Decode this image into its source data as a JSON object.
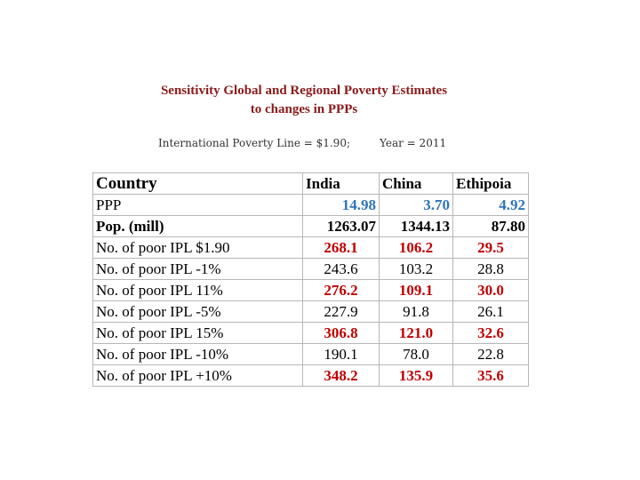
{
  "title": {
    "line1": "Sensitivity Global and Regional Poverty Estimates",
    "line2": "to changes in PPPs"
  },
  "subtitle": {
    "poverty_line": "International Poverty Line = $1.90;",
    "year": "Year = 2011"
  },
  "colors": {
    "title": "#8b1a1a",
    "ppp": "#2e75b6",
    "highlight": "#c00000"
  },
  "table": {
    "headers": [
      "Country",
      "India",
      "China",
      "Ethipoia"
    ],
    "rows": [
      {
        "label": "PPP",
        "values": [
          "14.98",
          "3.70",
          "4.92"
        ]
      },
      {
        "label": "Pop. (mill)",
        "values": [
          "1263.07",
          "1344.13",
          "87.80"
        ]
      },
      {
        "label": "No. of poor IPL  $1.90",
        "values": [
          "268.1",
          "106.2",
          "29.5"
        ]
      },
      {
        "label": "No. of poor IPL  -1%",
        "values": [
          "243.6",
          "103.2",
          "28.8"
        ]
      },
      {
        "label": "No. of poor IPL  11%",
        "values": [
          "276.2",
          "109.1",
          "30.0"
        ]
      },
      {
        "label": "No. of poor IPL  -5%",
        "values": [
          "227.9",
          "91.8",
          "26.1"
        ]
      },
      {
        "label": "No. of poor IPL  15%",
        "values": [
          "306.8",
          "121.0",
          "32.6"
        ]
      },
      {
        "label": "No. of poor IPL  -10%",
        "values": [
          "190.1",
          "78.0",
          "22.8"
        ]
      },
      {
        "label": "No. of poor IPL  +10%",
        "values": [
          "348.2",
          "135.9",
          "35.6"
        ]
      }
    ]
  }
}
